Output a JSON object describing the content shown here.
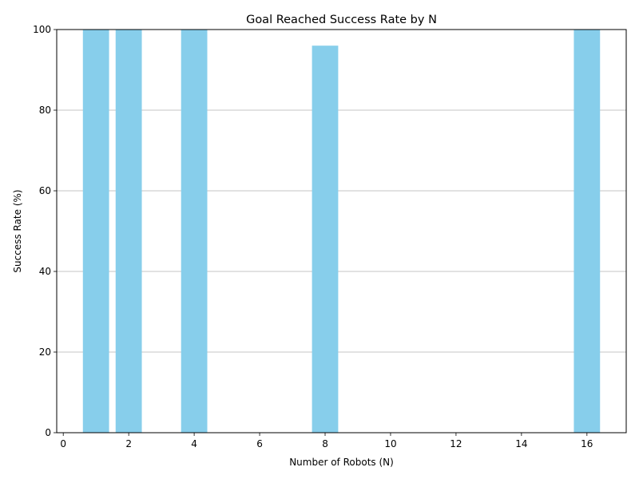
{
  "chart_data": {
    "type": "bar",
    "title": "Goal Reached Success Rate by N",
    "xlabel": "Number of Robots (N)",
    "ylabel": "Success Rate (%)",
    "x": [
      1,
      2,
      4,
      8,
      16
    ],
    "values": [
      100,
      100,
      100,
      96,
      100
    ],
    "bar_width": 0.8,
    "xlim": [
      -0.2,
      17.2
    ],
    "ylim": [
      0,
      100
    ],
    "xticks": [
      0,
      2,
      4,
      6,
      8,
      10,
      12,
      14,
      16
    ],
    "yticks": [
      0,
      20,
      40,
      60,
      80,
      100
    ],
    "grid": "y",
    "bar_color": "#87CEEB"
  }
}
